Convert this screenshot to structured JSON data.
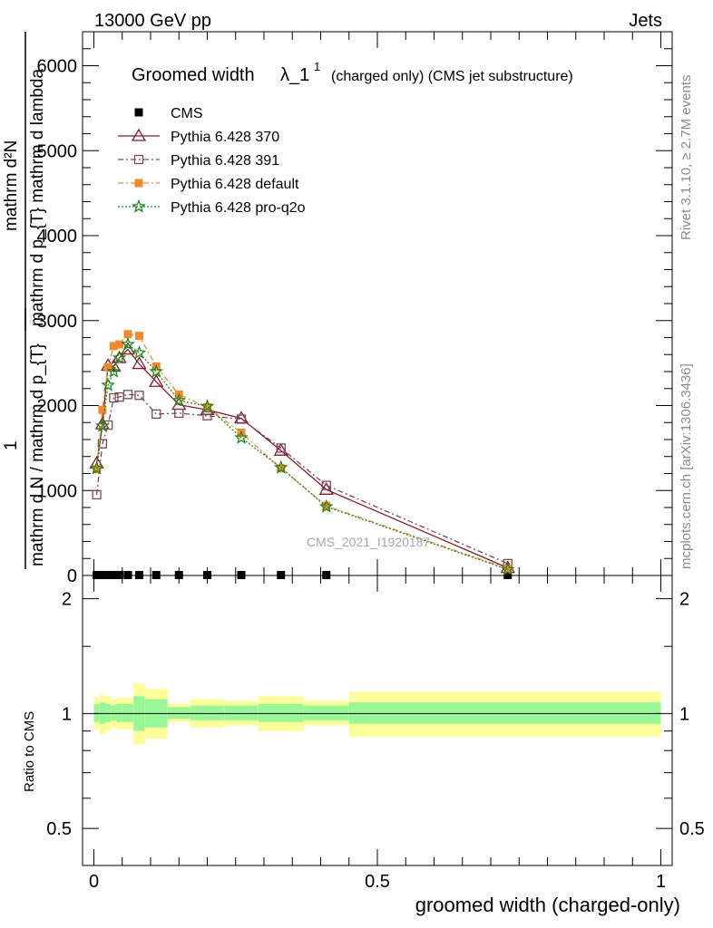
{
  "header": {
    "left": "13000 GeV pp",
    "right": "Jets"
  },
  "side_text": {
    "rivet": "Rivet 3.1.10, ≥ 2.7M events",
    "mcplots": "mcplots.cern.ch [arXiv:1306.3436]"
  },
  "watermark": "CMS_2021_I1920187",
  "chart_data": [
    {
      "type": "line",
      "title_main": "Groomed width",
      "title_lambda": "λ_1",
      "title_sup": "1",
      "title_rest": "(charged only) (CMS jet substructure)",
      "ylabel_top": "mathrm d²N",
      "ylabel_top_den": "mathrm d p_{T} mathrm d lambda",
      "ylabel_one": "1",
      "ylabel_den": "mathrm d N / mathrm d p_{T}",
      "xlim": [
        -0.02,
        1.02
      ],
      "ylim": [
        0,
        6400
      ],
      "yticks": [
        0,
        1000,
        2000,
        3000,
        4000,
        5000,
        6000
      ],
      "ytick_labels": [
        "0",
        "1000",
        "2000",
        "3000",
        "4000",
        "5000",
        "6000"
      ],
      "series": [
        {
          "name": "CMS",
          "color": "#000000",
          "marker": "square-filled",
          "x": [
            0.005,
            0.015,
            0.025,
            0.035,
            0.045,
            0.06,
            0.08,
            0.11,
            0.15,
            0.2,
            0.26,
            0.33,
            0.41,
            0.73
          ],
          "y": [
            5,
            5,
            5,
            5,
            5,
            5,
            5,
            5,
            5,
            5,
            5,
            5,
            5,
            5
          ]
        },
        {
          "name": "Pythia 6.428 370",
          "color": "#8b1a2a",
          "marker": "triangle-open",
          "dash": "",
          "x": [
            0.005,
            0.015,
            0.025,
            0.035,
            0.045,
            0.06,
            0.08,
            0.11,
            0.15,
            0.2,
            0.26,
            0.33,
            0.41,
            0.73
          ],
          "y": [
            1320,
            1780,
            2470,
            2460,
            2560,
            2660,
            2490,
            2280,
            2010,
            1950,
            1850,
            1470,
            1010,
            90
          ]
        },
        {
          "name": "Pythia 6.428 391",
          "color": "#7a4a5a",
          "marker": "square-open",
          "dash": "6,3,2,3",
          "x": [
            0.005,
            0.015,
            0.025,
            0.035,
            0.045,
            0.06,
            0.08,
            0.11,
            0.15,
            0.2,
            0.26,
            0.33,
            0.41,
            0.73
          ],
          "y": [
            950,
            1550,
            1770,
            2090,
            2100,
            2130,
            2120,
            1900,
            1910,
            1880,
            1840,
            1500,
            1060,
            140
          ]
        },
        {
          "name": "Pythia 6.428 default",
          "color": "#f5892a",
          "marker": "square-filled",
          "dash": "6,3,2,3",
          "x": [
            0.005,
            0.015,
            0.025,
            0.035,
            0.045,
            0.06,
            0.08,
            0.11,
            0.15,
            0.2,
            0.26,
            0.33,
            0.41,
            0.73
          ],
          "y": [
            1250,
            1950,
            2450,
            2700,
            2720,
            2840,
            2820,
            2460,
            2130,
            1980,
            1680,
            1260,
            820,
            80
          ]
        },
        {
          "name": "Pythia 6.428 pro-q2o",
          "color": "#1e8c1e",
          "marker": "star-open",
          "dash": "2,2",
          "x": [
            0.005,
            0.015,
            0.025,
            0.035,
            0.045,
            0.06,
            0.08,
            0.11,
            0.15,
            0.2,
            0.26,
            0.33,
            0.41,
            0.73
          ],
          "y": [
            1260,
            1760,
            2240,
            2400,
            2560,
            2720,
            2620,
            2400,
            2060,
            1990,
            1620,
            1270,
            810,
            70
          ]
        }
      ]
    },
    {
      "type": "line",
      "ylabel": "Ratio to CMS",
      "xlabel": "groomed width (charged-only)",
      "xlim": [
        -0.02,
        1.02
      ],
      "ylim": [
        0.4,
        2.3
      ],
      "log_y": true,
      "yticks": [
        0.5,
        1,
        2
      ],
      "ytick_labels": [
        "0.5",
        "1",
        "2"
      ],
      "xticks": [
        0,
        0.5,
        1
      ],
      "xtick_labels": [
        "0",
        "0.5",
        "1"
      ],
      "reference_line": 1,
      "bands": [
        {
          "x0": 0.0,
          "x1": 0.01,
          "inner": [
            0.95,
            1.06
          ],
          "outer": [
            0.91,
            1.1
          ]
        },
        {
          "x0": 0.01,
          "x1": 0.02,
          "inner": [
            0.94,
            1.07
          ],
          "outer": [
            0.88,
            1.12
          ]
        },
        {
          "x0": 0.02,
          "x1": 0.03,
          "inner": [
            0.95,
            1.06
          ],
          "outer": [
            0.9,
            1.11
          ]
        },
        {
          "x0": 0.03,
          "x1": 0.04,
          "inner": [
            0.96,
            1.05
          ],
          "outer": [
            0.92,
            1.09
          ]
        },
        {
          "x0": 0.04,
          "x1": 0.05,
          "inner": [
            0.95,
            1.06
          ],
          "outer": [
            0.91,
            1.1
          ]
        },
        {
          "x0": 0.05,
          "x1": 0.07,
          "inner": [
            0.95,
            1.06
          ],
          "outer": [
            0.91,
            1.1
          ]
        },
        {
          "x0": 0.07,
          "x1": 0.09,
          "inner": [
            0.9,
            1.11
          ],
          "outer": [
            0.83,
            1.2
          ]
        },
        {
          "x0": 0.09,
          "x1": 0.13,
          "inner": [
            0.92,
            1.09
          ],
          "outer": [
            0.86,
            1.16
          ]
        },
        {
          "x0": 0.13,
          "x1": 0.17,
          "inner": [
            0.97,
            1.04
          ],
          "outer": [
            0.95,
            1.06
          ]
        },
        {
          "x0": 0.17,
          "x1": 0.23,
          "inner": [
            0.96,
            1.05
          ],
          "outer": [
            0.92,
            1.09
          ]
        },
        {
          "x0": 0.23,
          "x1": 0.29,
          "inner": [
            0.96,
            1.05
          ],
          "outer": [
            0.93,
            1.08
          ]
        },
        {
          "x0": 0.29,
          "x1": 0.37,
          "inner": [
            0.95,
            1.06
          ],
          "outer": [
            0.9,
            1.11
          ]
        },
        {
          "x0": 0.37,
          "x1": 0.45,
          "inner": [
            0.96,
            1.05
          ],
          "outer": [
            0.93,
            1.08
          ]
        },
        {
          "x0": 0.45,
          "x1": 1.0,
          "inner": [
            0.94,
            1.07
          ],
          "outer": [
            0.87,
            1.14
          ]
        }
      ],
      "band_colors": {
        "inner": "#98f898",
        "outer": "#fefe98"
      }
    }
  ]
}
